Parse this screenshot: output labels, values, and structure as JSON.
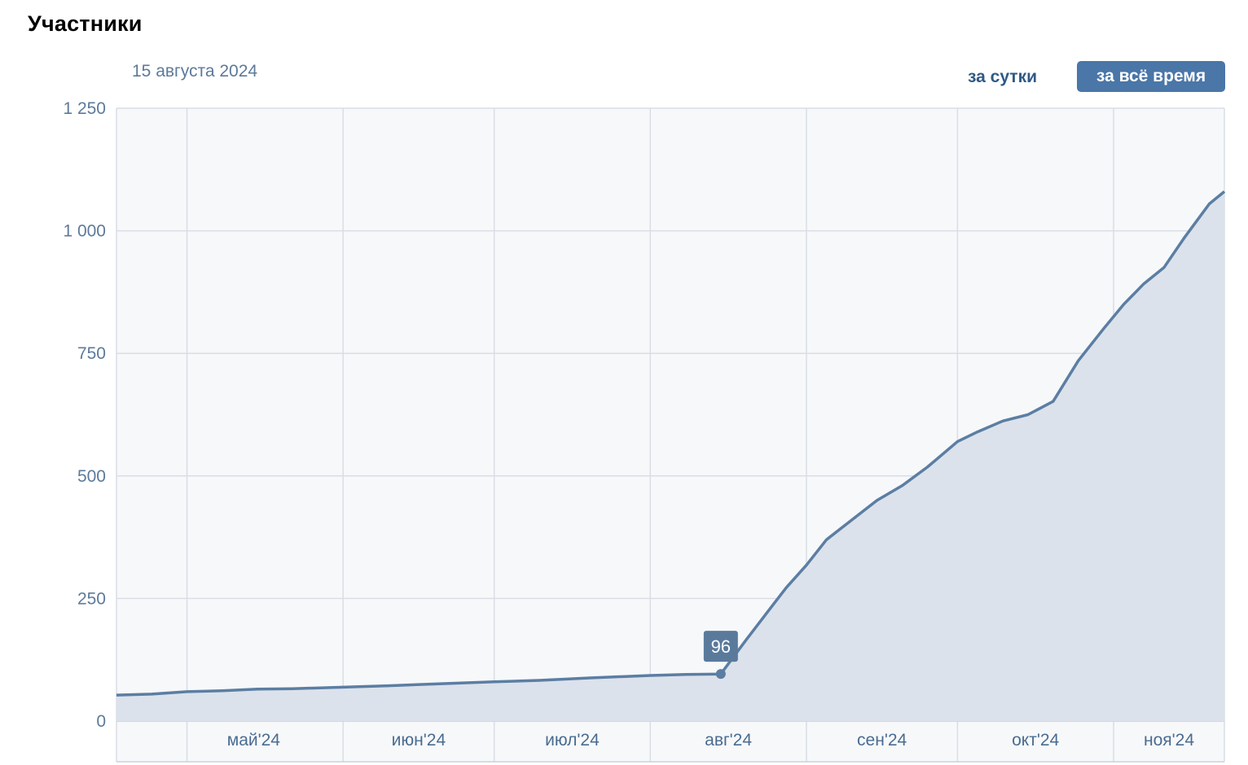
{
  "header": {
    "title": "Участники",
    "date": "15 августа 2024"
  },
  "period": {
    "day_label": "за сутки",
    "all_label": "за всё время",
    "selected": "all"
  },
  "colors": {
    "line": "#5b7ea3",
    "area": "#dce2eb",
    "plot_bg": "#f7f8fa",
    "grid": "#d9dee5",
    "tooltip_bg": "#5a7a9c",
    "accent": "#4a76a8"
  },
  "chart_data": {
    "type": "area",
    "xlabel": "",
    "ylabel": "",
    "ylim": [
      0,
      1250
    ],
    "y_ticks": [
      0,
      250,
      500,
      750,
      1000,
      1250
    ],
    "y_tick_labels": [
      "0",
      "250",
      "500",
      "750",
      "1 000",
      "1 250"
    ],
    "x_ticks": [
      "май'24",
      "июн'24",
      "июл'24",
      "авг'24",
      "сен'24",
      "окт'24",
      "ноя'24"
    ],
    "x_range": [
      "2024-04-17",
      "2024-11-23"
    ],
    "grid": true,
    "tooltip": {
      "x": "2024-08-15",
      "value": 96,
      "label": "96"
    },
    "x": [
      "2024-04-17",
      "2024-04-24",
      "2024-05-01",
      "2024-05-08",
      "2024-05-15",
      "2024-05-22",
      "2024-06-01",
      "2024-06-10",
      "2024-06-20",
      "2024-07-01",
      "2024-07-10",
      "2024-07-20",
      "2024-08-01",
      "2024-08-08",
      "2024-08-15",
      "2024-08-20",
      "2024-08-25",
      "2024-08-28",
      "2024-09-01",
      "2024-09-05",
      "2024-09-10",
      "2024-09-15",
      "2024-09-20",
      "2024-09-25",
      "2024-10-01",
      "2024-10-05",
      "2024-10-10",
      "2024-10-15",
      "2024-10-20",
      "2024-10-25",
      "2024-10-30",
      "2024-11-03",
      "2024-11-07",
      "2024-11-11",
      "2024-11-15",
      "2024-11-20",
      "2024-11-23"
    ],
    "values": [
      53,
      55,
      60,
      62,
      65,
      66,
      69,
      72,
      76,
      80,
      83,
      88,
      93,
      95,
      96,
      165,
      232,
      272,
      318,
      370,
      410,
      450,
      480,
      518,
      570,
      590,
      612,
      625,
      652,
      735,
      800,
      850,
      892,
      925,
      985,
      1055,
      1080
    ]
  }
}
